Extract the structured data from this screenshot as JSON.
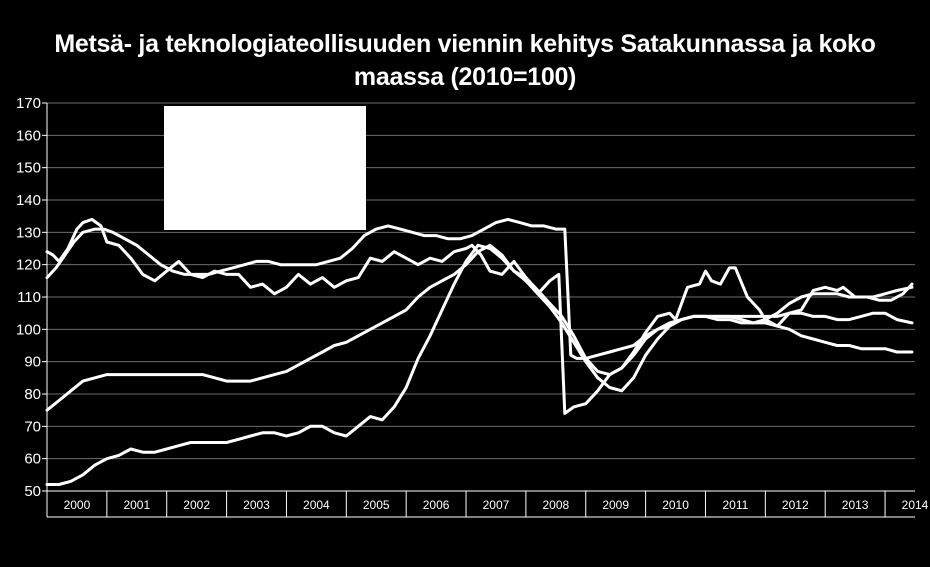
{
  "chart_data": {
    "type": "line",
    "title_line1": "Metsä- ja teknologiateollisuuden viennin kehitys Satakunnassa ja koko",
    "title_line2": "maassa (2010=100)",
    "xlabel": "",
    "ylabel": "",
    "ylim": [
      50,
      170
    ],
    "yticks": [
      50,
      60,
      70,
      80,
      90,
      100,
      110,
      120,
      130,
      140,
      150,
      160,
      170
    ],
    "x_tick_labels": [
      "2000",
      "2001",
      "2002",
      "2003",
      "2004",
      "2005",
      "2006",
      "2007",
      "2008",
      "2009",
      "2010",
      "2011",
      "2012",
      "2013",
      "2014"
    ],
    "x_start": 2000,
    "x_end": 2014.5,
    "grid": "horizontal",
    "legend": "top-left, covered by a white box",
    "line_color": "#ffffff",
    "series": [
      {
        "x": [
          2000.0,
          2000.15,
          2000.3,
          2000.45,
          2000.6,
          2000.8,
          2000.95,
          2001.1,
          2001.3,
          2001.5,
          2001.7,
          2001.9,
          2002.1,
          2002.3,
          2002.5,
          2002.7,
          2002.9,
          2003.1,
          2003.3,
          2003.5,
          2003.7,
          2003.9,
          2004.1,
          2004.3,
          2004.5,
          2004.7,
          2004.9,
          2005.1,
          2005.3,
          2005.5,
          2005.7,
          2005.9,
          2006.1,
          2006.3,
          2006.5,
          2006.7,
          2006.9,
          2007.1,
          2007.3,
          2007.5,
          2007.7,
          2007.9,
          2008.1,
          2008.3,
          2008.5,
          2008.65,
          2008.75,
          2008.85,
          2009.0,
          2009.2,
          2009.4,
          2009.6,
          2009.8,
          2010.0,
          2010.2,
          2010.4,
          2010.6,
          2010.8,
          2011.0,
          2011.2,
          2011.4,
          2011.6,
          2011.8,
          2012.0,
          2012.2,
          2012.4,
          2012.6,
          2012.8,
          2013.0,
          2013.2,
          2013.4,
          2013.6,
          2013.8,
          2014.0,
          2014.2,
          2014.45
        ],
        "values": [
          116,
          119,
          123,
          127,
          130,
          131,
          131,
          130,
          128,
          126,
          123,
          120,
          118,
          117,
          117,
          117,
          118,
          119,
          120,
          121,
          121,
          120,
          120,
          120,
          120,
          121,
          122,
          125,
          129,
          131,
          132,
          131,
          130,
          129,
          129,
          128,
          128,
          129,
          131,
          133,
          134,
          133,
          132,
          132,
          131,
          131,
          92,
          91,
          91,
          92,
          93,
          94,
          95,
          98,
          100,
          102,
          103,
          104,
          104,
          104,
          104,
          104,
          104,
          104,
          104,
          105,
          105,
          104,
          104,
          103,
          103,
          104,
          105,
          105,
          103,
          102
        ]
      },
      {
        "x": [
          2000.0,
          2000.1,
          2000.2,
          2000.35,
          2000.5,
          2000.6,
          2000.75,
          2000.9,
          2001.0,
          2001.2,
          2001.4,
          2001.6,
          2001.8,
          2002.0,
          2002.2,
          2002.4,
          2002.6,
          2002.8,
          2003.0,
          2003.2,
          2003.4,
          2003.6,
          2003.8,
          2004.0,
          2004.2,
          2004.4,
          2004.6,
          2004.8,
          2005.0,
          2005.2,
          2005.4,
          2005.6,
          2005.8,
          2006.0,
          2006.2,
          2006.4,
          2006.6,
          2006.8,
          2007.0,
          2007.1,
          2007.25,
          2007.4,
          2007.6,
          2007.8,
          2008.0,
          2008.2,
          2008.4,
          2008.55,
          2008.65,
          2008.8,
          2009.0,
          2009.2,
          2009.4,
          2009.6,
          2009.8,
          2010.0,
          2010.2,
          2010.4,
          2010.5,
          2010.7,
          2010.9,
          2011.0,
          2011.1,
          2011.25,
          2011.4,
          2011.5,
          2011.7,
          2011.9,
          2012.0,
          2012.2,
          2012.4,
          2012.6,
          2012.8,
          2013.0,
          2013.2,
          2013.3,
          2013.5,
          2013.7,
          2013.9,
          2014.1,
          2014.3,
          2014.45
        ],
        "values": [
          124,
          123,
          121,
          125,
          131,
          133,
          134,
          132,
          127,
          126,
          122,
          117,
          115,
          118,
          121,
          117,
          116,
          118,
          117,
          117,
          113,
          114,
          111,
          113,
          117,
          114,
          116,
          113,
          115,
          116,
          122,
          121,
          124,
          122,
          120,
          122,
          121,
          124,
          125,
          126,
          123,
          118,
          117,
          121,
          116,
          111,
          115,
          117,
          74,
          76,
          77,
          81,
          86,
          88,
          93,
          99,
          104,
          105,
          103,
          113,
          114,
          118,
          115,
          114,
          119,
          119,
          110,
          106,
          103,
          101,
          105,
          106,
          112,
          113,
          112,
          113,
          110,
          110,
          109,
          109,
          111,
          114
        ]
      },
      {
        "x": [
          2000.0,
          2000.2,
          2000.4,
          2000.6,
          2000.8,
          2001.0,
          2001.2,
          2001.4,
          2001.6,
          2001.8,
          2002.0,
          2002.2,
          2002.4,
          2002.6,
          2002.8,
          2003.0,
          2003.2,
          2003.4,
          2003.6,
          2003.8,
          2004.0,
          2004.2,
          2004.4,
          2004.6,
          2004.8,
          2005.0,
          2005.2,
          2005.4,
          2005.6,
          2005.8,
          2006.0,
          2006.2,
          2006.4,
          2006.6,
          2006.8,
          2007.0,
          2007.2,
          2007.4,
          2007.6,
          2007.8,
          2008.0,
          2008.2,
          2008.4,
          2008.6,
          2008.8,
          2009.0,
          2009.2,
          2009.4,
          2009.6,
          2009.8,
          2010.0,
          2010.2,
          2010.4,
          2010.6,
          2010.8,
          2011.0,
          2011.2,
          2011.4,
          2011.6,
          2011.8,
          2012.0,
          2012.2,
          2012.4,
          2012.6,
          2012.8,
          2013.0,
          2013.2,
          2013.4,
          2013.6,
          2013.8,
          2014.0,
          2014.2,
          2014.45
        ],
        "values": [
          75,
          78,
          81,
          84,
          85,
          86,
          86,
          86,
          86,
          86,
          86,
          86,
          86,
          86,
          85,
          84,
          84,
          84,
          85,
          86,
          87,
          89,
          91,
          93,
          95,
          96,
          98,
          100,
          102,
          104,
          106,
          110,
          113,
          115,
          117,
          120,
          124,
          126,
          123,
          118,
          116,
          112,
          108,
          104,
          98,
          91,
          87,
          86,
          88,
          92,
          97,
          100,
          101,
          103,
          104,
          104,
          104,
          104,
          103,
          102,
          102,
          101,
          100,
          98,
          97,
          96,
          95,
          95,
          94,
          94,
          94,
          93,
          93
        ]
      },
      {
        "x": [
          2000.0,
          2000.2,
          2000.4,
          2000.6,
          2000.8,
          2001.0,
          2001.2,
          2001.4,
          2001.6,
          2001.8,
          2002.0,
          2002.2,
          2002.4,
          2002.6,
          2002.8,
          2003.0,
          2003.2,
          2003.4,
          2003.6,
          2003.8,
          2004.0,
          2004.2,
          2004.4,
          2004.6,
          2004.8,
          2005.0,
          2005.2,
          2005.4,
          2005.6,
          2005.8,
          2006.0,
          2006.2,
          2006.4,
          2006.6,
          2006.8,
          2007.0,
          2007.2,
          2007.4,
          2007.6,
          2007.8,
          2008.0,
          2008.2,
          2008.4,
          2008.6,
          2008.8,
          2009.0,
          2009.2,
          2009.4,
          2009.6,
          2009.8,
          2010.0,
          2010.2,
          2010.4,
          2010.6,
          2010.8,
          2011.0,
          2011.2,
          2011.4,
          2011.6,
          2011.8,
          2012.0,
          2012.2,
          2012.4,
          2012.6,
          2012.8,
          2013.0,
          2013.2,
          2013.4,
          2013.6,
          2013.8,
          2014.0,
          2014.2,
          2014.45
        ],
        "values": [
          52,
          52,
          53,
          55,
          58,
          60,
          61,
          63,
          62,
          62,
          63,
          64,
          65,
          65,
          65,
          65,
          66,
          67,
          68,
          68,
          67,
          68,
          70,
          70,
          68,
          67,
          70,
          73,
          72,
          76,
          82,
          91,
          98,
          106,
          114,
          121,
          126,
          125,
          122,
          118,
          115,
          111,
          107,
          102,
          96,
          90,
          85,
          82,
          81,
          85,
          92,
          97,
          101,
          103,
          104,
          104,
          103,
          103,
          102,
          102,
          103,
          105,
          108,
          110,
          111,
          111,
          111,
          110,
          110,
          110,
          111,
          112,
          113
        ]
      }
    ]
  },
  "legend_box_color": "#ffffff"
}
